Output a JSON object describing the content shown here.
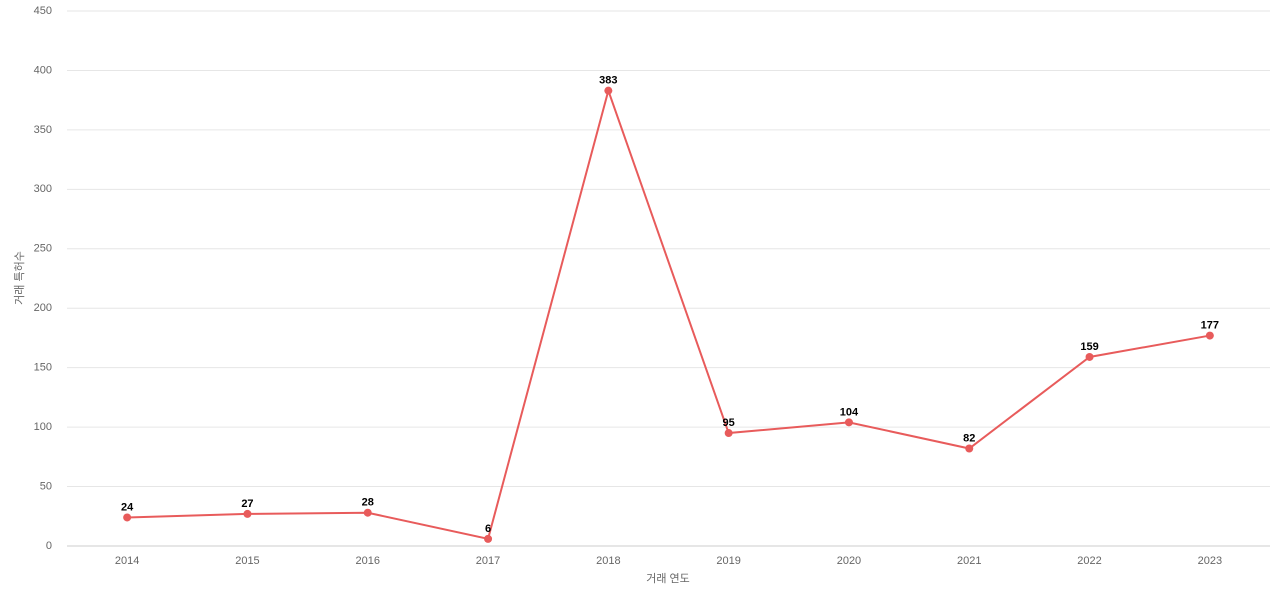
{
  "chart_data": {
    "type": "line",
    "x_label": "거래 연도",
    "y_label": "거래 특허수",
    "categories": [
      "2014",
      "2015",
      "2016",
      "2017",
      "2018",
      "2019",
      "2020",
      "2021",
      "2022",
      "2023"
    ],
    "series": [
      {
        "color": "#e85b5b",
        "values": [
          24,
          27,
          28,
          6,
          383,
          95,
          104,
          82,
          159,
          177
        ]
      }
    ],
    "ylim": [
      0,
      450
    ],
    "yticks": [
      0,
      50,
      100,
      150,
      200,
      250,
      300,
      350,
      400,
      450
    ],
    "grid": true
  }
}
